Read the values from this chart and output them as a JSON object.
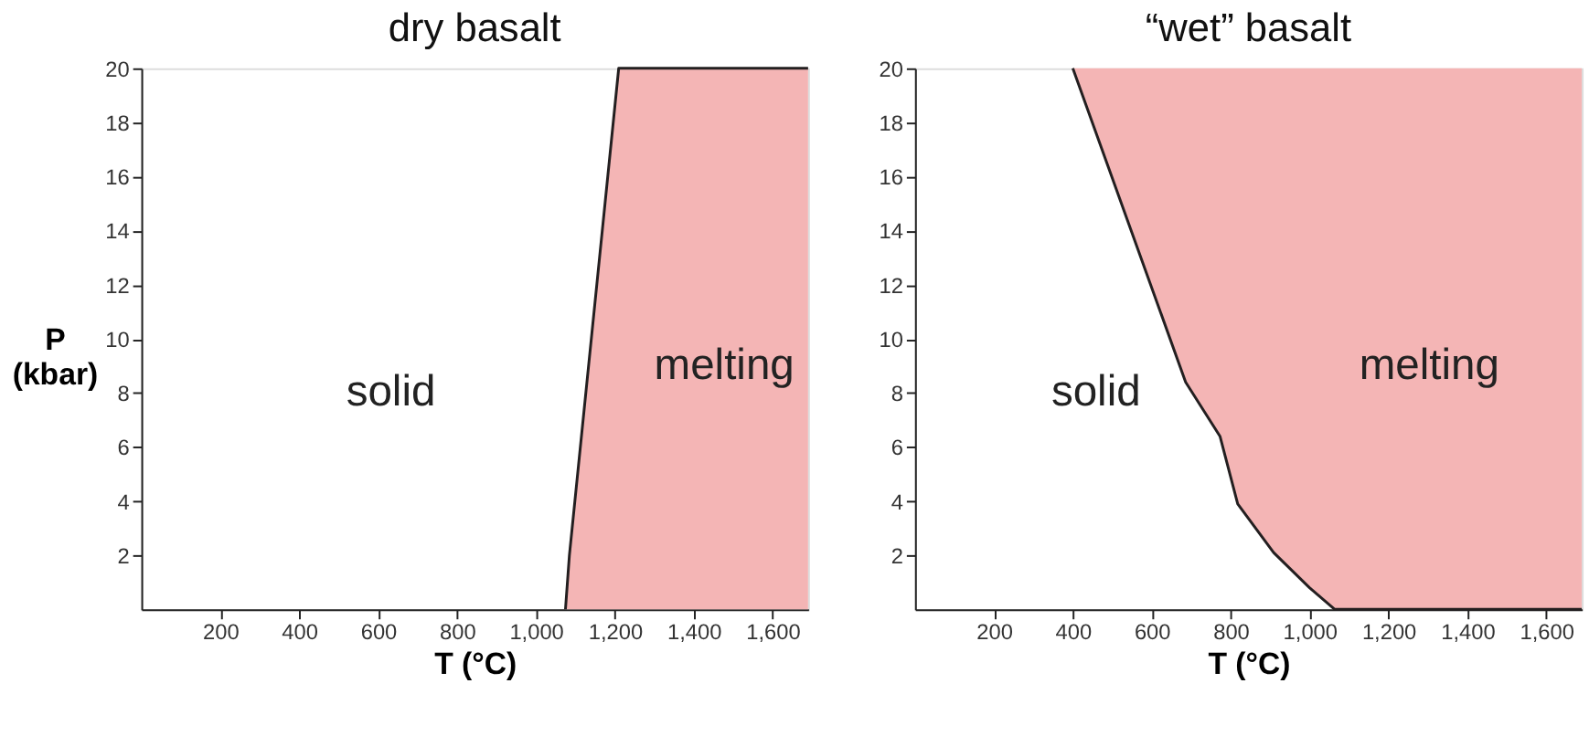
{
  "chart_data": [
    {
      "type": "area",
      "title": "dry basalt",
      "xlabel": "T (°C)",
      "ylabel": "P (kbar)",
      "xlim": [
        0,
        1690
      ],
      "ylim": [
        0,
        20
      ],
      "xticks": [
        200,
        400,
        600,
        800,
        {
          "value": 1000,
          "label": "1,000"
        },
        {
          "value": 1200,
          "label": "1,200"
        },
        {
          "value": 1400,
          "label": "1,400"
        },
        {
          "value": 1600,
          "label": "1,600"
        }
      ],
      "yticks": [
        2,
        4,
        6,
        8,
        10,
        12,
        14,
        16,
        18,
        20
      ],
      "grid": false,
      "series": [
        {
          "color": "#f4b5b5",
          "x": [
            1075,
            1085,
            1210,
            1690
          ],
          "values": [
            0,
            2,
            20,
            20
          ]
        }
      ],
      "annotations": [
        "solid",
        "melting"
      ]
    },
    {
      "type": "area",
      "title": "“wet” basalt",
      "xlabel": "T (°C)",
      "xlim": [
        0,
        1690
      ],
      "ylim": [
        0,
        20
      ],
      "xticks": [
        200,
        400,
        600,
        800,
        {
          "value": 1000,
          "label": "1,000"
        },
        {
          "value": 1200,
          "label": "1,200"
        },
        {
          "value": 1400,
          "label": "1,400"
        },
        {
          "value": 1600,
          "label": "1,600"
        }
      ],
      "yticks": [
        2,
        4,
        6,
        8,
        10,
        12,
        14,
        16,
        18,
        20
      ],
      "grid": false,
      "series": [
        {
          "type": "line",
          "color": "#231f20",
          "colors": [
            "#f4b5b5",
            "#f4b5b5",
            "#f4b5b5",
            "#f4b5b5",
            "#f4b5b5",
            "#f4b5b5",
            "#f4b5b5",
            "#f4b5b5"
          ],
          "x": [
            400,
            686,
            773,
            818,
            909,
            1000,
            1064,
            1690
          ],
          "values": [
            20,
            8.4,
            6.4,
            3.9,
            2.1,
            0.8,
            0,
            0
          ],
          "lower": [
            20,
            8.4,
            6.4,
            3.9,
            2.1,
            0.8,
            0,
            0
          ],
          "upper": [
            20,
            20,
            20,
            20,
            20,
            20,
            20,
            20
          ]
        }
      ],
      "annotations": [
        "solid",
        "melting"
      ]
    }
  ]
}
